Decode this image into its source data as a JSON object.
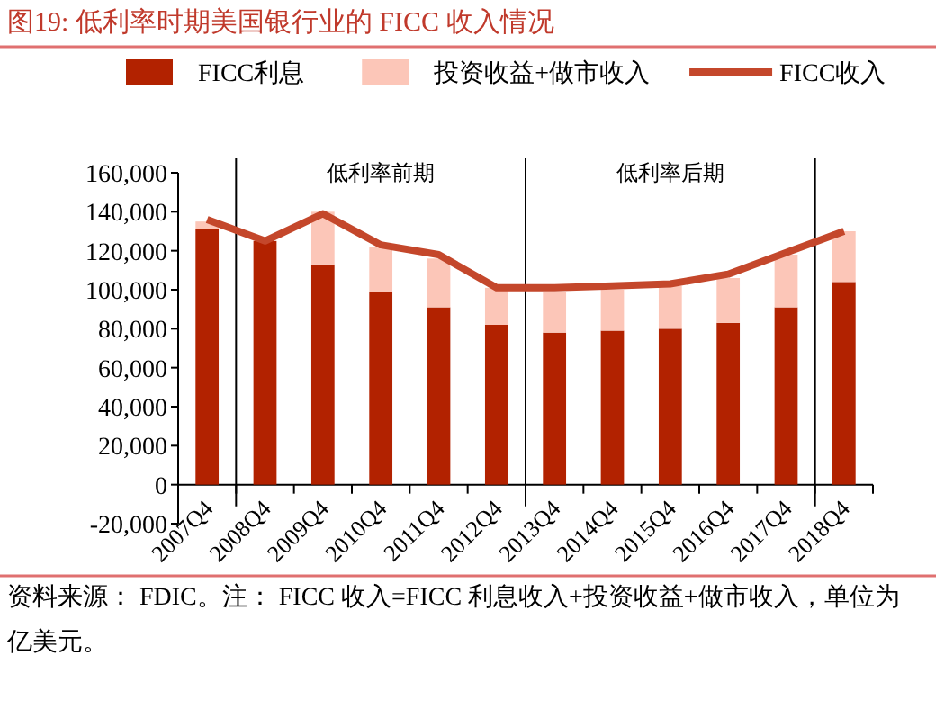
{
  "chart_data": {
    "type": "bar",
    "stacked": true,
    "title": "图19:   低利率时期美国银行业的 FICC 收入情况",
    "categories": [
      "2007Q4",
      "2008Q4",
      "2009Q4",
      "2010Q4",
      "2011Q4",
      "2012Q4",
      "2013Q4",
      "2014Q4",
      "2015Q4",
      "2016Q4",
      "2017Q4",
      "2018Q4"
    ],
    "series": [
      {
        "name": "FICC利息",
        "color": "#b22200",
        "values": [
          131000,
          125000,
          113000,
          99000,
          91000,
          82000,
          78000,
          79000,
          80000,
          83000,
          91000,
          104000
        ]
      },
      {
        "name": "投资收益+做市收入",
        "color": "#fcc6b8",
        "values": [
          4000,
          0,
          27000,
          23000,
          25000,
          19000,
          21000,
          21000,
          22000,
          23000,
          27000,
          26000
        ]
      },
      {
        "name": "FICC收入",
        "type": "line",
        "color": "#c4472b",
        "values": [
          136000,
          125000,
          139000,
          123000,
          118000,
          101000,
          101000,
          102000,
          103000,
          108000,
          119000,
          130000
        ]
      }
    ],
    "ylim": [
      -20000,
      160000
    ],
    "yticks": [
      {
        "value": -20000,
        "label": "-20,000"
      },
      0,
      {
        "value": 20000,
        "label": "20,000"
      },
      {
        "value": 40000,
        "label": "40,000"
      },
      {
        "value": 60000,
        "label": "60,000"
      },
      {
        "value": 80000,
        "label": "80,000"
      },
      {
        "value": 100000,
        "label": "100,000"
      },
      {
        "value": 120000,
        "label": "120,000"
      },
      {
        "value": 140000,
        "label": "140,000"
      },
      {
        "value": 160000,
        "label": "160,000"
      }
    ],
    "legend": "top",
    "grid": false,
    "annotations": [
      "低利率前期",
      "低利率后期",
      "资料来源：  FDIC。注：  FICC 收入=FICC 利息收入+投资收益+做市收入，单位为亿美元。"
    ]
  }
}
